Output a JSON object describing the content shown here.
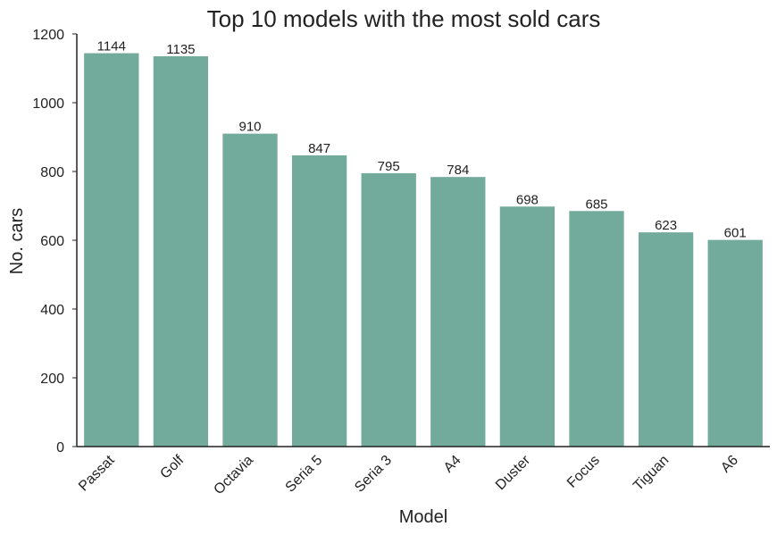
{
  "chart_data": {
    "type": "bar",
    "title": "Top 10 models with the most sold cars",
    "xlabel": "Model",
    "ylabel": "No. cars",
    "categories": [
      "Passat",
      "Golf",
      "Octavia",
      "Seria 5",
      "Seria 3",
      "A4",
      "Duster",
      "Focus",
      "Tiguan",
      "A6"
    ],
    "values": [
      1144,
      1135,
      910,
      847,
      795,
      784,
      698,
      685,
      623,
      601
    ],
    "ylim": [
      0,
      1200
    ],
    "yticks": [
      0,
      200,
      400,
      600,
      800,
      1000,
      1200
    ],
    "grid": false,
    "legend": "none",
    "bar_color": "#72aa9c"
  }
}
